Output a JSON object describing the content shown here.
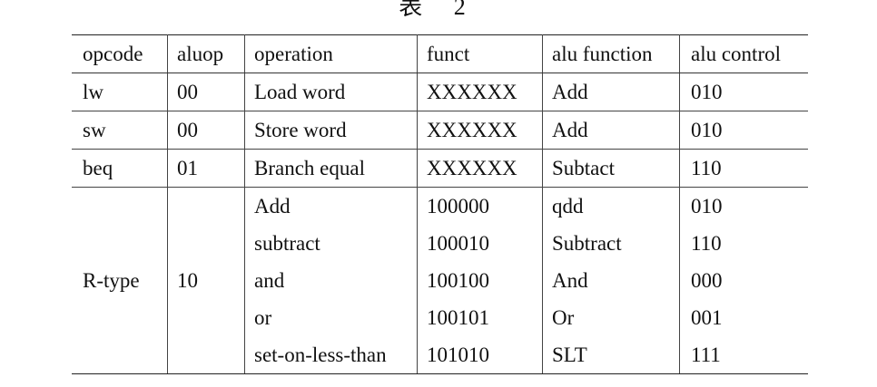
{
  "caption": "表 2",
  "table": {
    "headers": [
      "opcode",
      "aluop",
      "operation",
      "funct",
      "alu function",
      "alu control"
    ],
    "rows": [
      [
        "lw",
        "00",
        "Load word",
        "XXXXXX",
        "Add",
        "010"
      ],
      [
        "sw",
        "00",
        "Store word",
        "XXXXXX",
        "Add",
        "010"
      ],
      [
        "beq",
        "01",
        "Branch equal",
        "XXXXXX",
        "Subtact",
        "110"
      ]
    ],
    "rtype": {
      "opcode": "R-type",
      "aluop": "10",
      "rows": [
        [
          "Add",
          "100000",
          "qdd",
          "010"
        ],
        [
          "subtract",
          "100010",
          "Subtract",
          "110"
        ],
        [
          "and",
          "100100",
          "And",
          "000"
        ],
        [
          "or",
          "100101",
          "Or",
          "001"
        ],
        [
          "set-on-less-than",
          "101010",
          "SLT",
          "111"
        ]
      ]
    }
  }
}
